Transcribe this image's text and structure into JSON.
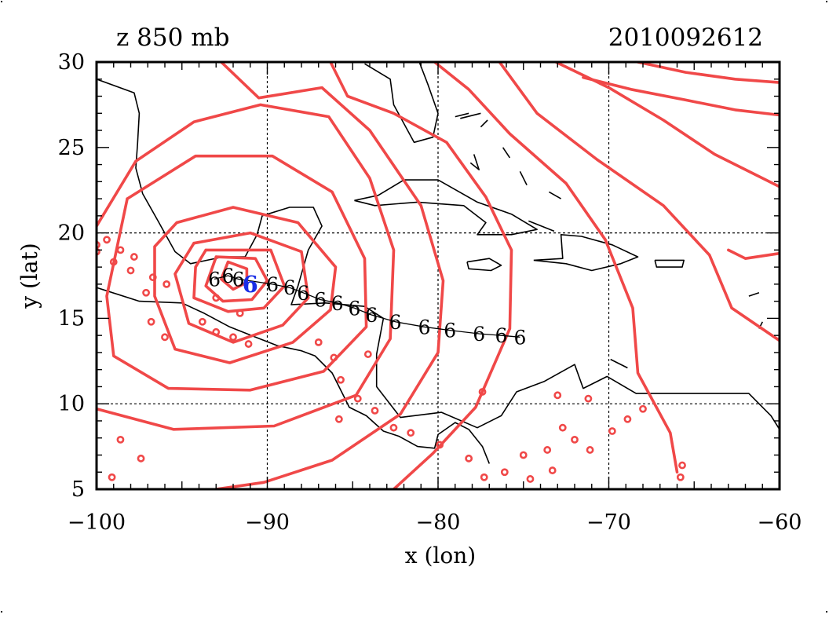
{
  "header": {
    "field_label": "z 850 mb",
    "timestamp": "2010092612"
  },
  "axes": {
    "xlabel": "x (lon)",
    "ylabel": "y (lat)",
    "xlim": [
      -100,
      -60
    ],
    "ylim": [
      5,
      30
    ],
    "xticks": [
      -100,
      -90,
      -80,
      -70,
      -60
    ],
    "yticks": [
      5,
      10,
      15,
      20,
      25,
      30
    ],
    "xtick_labels": [
      "−100",
      "−90",
      "−80",
      "−70",
      "−60"
    ],
    "ytick_labels": [
      "5",
      "10",
      "15",
      "20",
      "25",
      "30"
    ],
    "grid_lon": [
      -90,
      -80,
      -70
    ],
    "grid_lat": [
      10,
      20
    ]
  },
  "colors": {
    "contour": "#f04848",
    "coast": "#000000",
    "track": "#000000",
    "current_position": "#1a2ee6"
  },
  "track": {
    "marker_glyph": "6",
    "points": [
      {
        "lon": -93.1,
        "lat": 17.3
      },
      {
        "lon": -92.3,
        "lat": 17.5
      },
      {
        "lon": -91.7,
        "lat": 17.3
      },
      {
        "lon": -89.7,
        "lat": 17.0
      },
      {
        "lon": -88.7,
        "lat": 16.8
      },
      {
        "lon": -87.9,
        "lat": 16.5
      },
      {
        "lon": -86.9,
        "lat": 16.1
      },
      {
        "lon": -85.9,
        "lat": 15.9
      },
      {
        "lon": -84.9,
        "lat": 15.6
      },
      {
        "lon": -83.9,
        "lat": 15.2
      },
      {
        "lon": -82.5,
        "lat": 14.8
      },
      {
        "lon": -80.8,
        "lat": 14.5
      },
      {
        "lon": -79.3,
        "lat": 14.3
      },
      {
        "lon": -77.6,
        "lat": 14.1
      },
      {
        "lon": -76.3,
        "lat": 14.0
      },
      {
        "lon": -75.2,
        "lat": 13.9
      }
    ],
    "current": {
      "lon": -91.0,
      "lat": 17.0
    }
  },
  "contours": [
    [
      [
        -92.3,
        18.3
      ],
      [
        -91.2,
        17.9
      ],
      [
        -91.2,
        17.1
      ],
      [
        -92.0,
        16.7
      ],
      [
        -92.7,
        17.3
      ],
      [
        -92.3,
        18.3
      ]
    ],
    [
      [
        -93.0,
        18.6
      ],
      [
        -90.7,
        18.5
      ],
      [
        -90.0,
        17.2
      ],
      [
        -90.9,
        16.1
      ],
      [
        -92.6,
        16.0
      ],
      [
        -93.6,
        16.9
      ],
      [
        -93.0,
        18.6
      ]
    ],
    [
      [
        -93.6,
        19.0
      ],
      [
        -89.8,
        19.0
      ],
      [
        -89.0,
        16.9
      ],
      [
        -90.2,
        15.6
      ],
      [
        -92.3,
        15.4
      ],
      [
        -94.3,
        16.2
      ],
      [
        -94.2,
        18.0
      ],
      [
        -93.6,
        19.0
      ]
    ],
    [
      [
        -94.3,
        19.4
      ],
      [
        -91.0,
        20.0
      ],
      [
        -88.0,
        18.9
      ],
      [
        -87.6,
        16.2
      ],
      [
        -89.1,
        14.6
      ],
      [
        -92.0,
        13.6
      ],
      [
        -94.6,
        14.7
      ],
      [
        -95.4,
        17.6
      ],
      [
        -94.3,
        19.4
      ]
    ],
    [
      [
        -95.3,
        20.6
      ],
      [
        -92.0,
        21.5
      ],
      [
        -88.2,
        20.6
      ],
      [
        -86.0,
        18.0
      ],
      [
        -86.3,
        15.5
      ],
      [
        -88.5,
        13.6
      ],
      [
        -92.2,
        12.4
      ],
      [
        -95.4,
        13.2
      ],
      [
        -96.6,
        16.3
      ],
      [
        -96.6,
        19.2
      ],
      [
        -95.3,
        20.6
      ]
    ],
    [
      [
        -98.2,
        22.0
      ],
      [
        -94.2,
        24.5
      ],
      [
        -89.7,
        24.5
      ],
      [
        -86.2,
        22.4
      ],
      [
        -84.3,
        18.5
      ],
      [
        -84.2,
        14.5
      ],
      [
        -86.7,
        11.9
      ],
      [
        -91.0,
        10.8
      ],
      [
        -95.8,
        10.9
      ],
      [
        -99.0,
        12.8
      ],
      [
        -99.4,
        16.3
      ],
      [
        -98.2,
        22.0
      ]
    ],
    [
      [
        -100.0,
        20.4
      ],
      [
        -97.7,
        24.2
      ],
      [
        -94.3,
        26.5
      ],
      [
        -90.4,
        27.5
      ],
      [
        -86.4,
        26.8
      ],
      [
        -84.0,
        23.2
      ],
      [
        -82.6,
        19.0
      ],
      [
        -82.8,
        13.8
      ],
      [
        -84.8,
        10.5
      ],
      [
        -89.6,
        8.7
      ],
      [
        -95.5,
        8.5
      ],
      [
        -100.0,
        9.7
      ]
    ],
    [
      [
        -92.7,
        30.0
      ],
      [
        -90.5,
        27.9
      ],
      [
        -86.8,
        28.5
      ],
      [
        -84.0,
        26.0
      ],
      [
        -81.0,
        21.6
      ],
      [
        -79.7,
        17.2
      ],
      [
        -80.0,
        13.0
      ],
      [
        -82.2,
        9.4
      ],
      [
        -86.2,
        6.7
      ],
      [
        -90.2,
        5.4
      ],
      [
        -93.0,
        5.0
      ]
    ],
    [
      [
        -86.3,
        30.0
      ],
      [
        -85.3,
        28.0
      ],
      [
        -82.6,
        27.0
      ],
      [
        -79.5,
        25.3
      ],
      [
        -77.2,
        22.1
      ],
      [
        -75.7,
        19.0
      ],
      [
        -75.8,
        14.4
      ],
      [
        -77.8,
        9.8
      ],
      [
        -80.3,
        7.1
      ],
      [
        -82.6,
        5.0
      ]
    ],
    [
      [
        -80.2,
        30.0
      ],
      [
        -78.2,
        28.4
      ],
      [
        -75.8,
        25.8
      ],
      [
        -72.5,
        22.9
      ],
      [
        -70.2,
        19.6
      ],
      [
        -68.6,
        15.6
      ],
      [
        -68.3,
        11.8
      ],
      [
        -66.4,
        8.3
      ],
      [
        -66.0,
        6.0
      ]
    ],
    [
      [
        -76.4,
        30.0
      ],
      [
        -74.2,
        27.0
      ],
      [
        -70.7,
        24.3
      ],
      [
        -66.8,
        21.6
      ],
      [
        -64.1,
        18.7
      ],
      [
        -62.8,
        15.6
      ],
      [
        -60.0,
        13.7
      ]
    ],
    [
      [
        -73.1,
        30.0
      ],
      [
        -70.0,
        28.5
      ],
      [
        -66.8,
        26.6
      ],
      [
        -63.8,
        24.6
      ],
      [
        -60.0,
        22.7
      ]
    ],
    [
      [
        -68.3,
        30.0
      ],
      [
        -65.5,
        29.4
      ],
      [
        -62.6,
        29.0
      ],
      [
        -60.0,
        28.8
      ]
    ],
    [
      [
        -71.5,
        29.1
      ],
      [
        -68.7,
        28.4
      ],
      [
        -65.6,
        27.8
      ],
      [
        -62.6,
        27.2
      ],
      [
        -60.0,
        26.9
      ]
    ],
    [
      [
        -60.0,
        18.8
      ],
      [
        -62.0,
        18.5
      ],
      [
        -63.0,
        19.0
      ]
    ]
  ],
  "coastlines": [
    [
      [
        -100.0,
        29.0
      ],
      [
        -97.8,
        28.2
      ],
      [
        -97.5,
        27.0
      ],
      [
        -97.6,
        25.2
      ],
      [
        -97.7,
        23.8
      ],
      [
        -97.3,
        22.3
      ],
      [
        -96.4,
        20.7
      ],
      [
        -95.4,
        18.9
      ],
      [
        -94.5,
        18.2
      ],
      [
        -92.6,
        18.6
      ],
      [
        -91.3,
        18.6
      ],
      [
        -90.6,
        19.9
      ],
      [
        -90.3,
        21.0
      ],
      [
        -88.7,
        21.5
      ],
      [
        -87.3,
        21.5
      ],
      [
        -86.8,
        20.4
      ],
      [
        -87.6,
        19.0
      ],
      [
        -88.2,
        16.9
      ],
      [
        -88.6,
        15.8
      ],
      [
        -86.6,
        15.9
      ],
      [
        -84.3,
        15.7
      ],
      [
        -83.2,
        15.0
      ],
      [
        -83.6,
        12.9
      ],
      [
        -83.6,
        11.0
      ],
      [
        -82.2,
        9.2
      ],
      [
        -79.8,
        9.5
      ],
      [
        -77.7,
        8.6
      ],
      [
        -76.3,
        9.3
      ],
      [
        -75.4,
        10.7
      ],
      [
        -73.8,
        11.3
      ],
      [
        -72.0,
        12.3
      ],
      [
        -71.5,
        10.9
      ],
      [
        -70.1,
        11.6
      ],
      [
        -68.4,
        10.6
      ],
      [
        -66.0,
        10.6
      ],
      [
        -63.0,
        10.6
      ],
      [
        -61.8,
        10.6
      ],
      [
        -60.5,
        9.3
      ],
      [
        -60.0,
        8.5
      ]
    ],
    [
      [
        -100.0,
        16.8
      ],
      [
        -97.5,
        16.0
      ],
      [
        -95.0,
        15.9
      ],
      [
        -93.7,
        15.3
      ],
      [
        -92.2,
        14.5
      ],
      [
        -90.7,
        13.9
      ],
      [
        -89.4,
        13.4
      ],
      [
        -88.0,
        13.1
      ],
      [
        -87.2,
        12.8
      ],
      [
        -86.2,
        11.8
      ],
      [
        -85.6,
        10.6
      ],
      [
        -85.2,
        9.8
      ],
      [
        -84.2,
        9.3
      ],
      [
        -83.2,
        8.4
      ],
      [
        -82.3,
        8.1
      ],
      [
        -81.2,
        7.5
      ],
      [
        -80.2,
        7.4
      ],
      [
        -80.0,
        8.2
      ],
      [
        -79.0,
        8.9
      ],
      [
        -78.2,
        8.5
      ],
      [
        -77.4,
        7.5
      ],
      [
        -77.0,
        6.5
      ]
    ],
    [
      [
        -84.3,
        29.9
      ],
      [
        -82.8,
        29.0
      ],
      [
        -82.6,
        27.5
      ],
      [
        -81.4,
        25.3
      ],
      [
        -80.3,
        25.6
      ],
      [
        -80.0,
        27.0
      ],
      [
        -80.6,
        28.7
      ],
      [
        -81.1,
        30.0
      ]
    ],
    [
      [
        -84.9,
        21.9
      ],
      [
        -83.5,
        22.2
      ],
      [
        -82.0,
        23.1
      ],
      [
        -80.0,
        23.1
      ],
      [
        -77.7,
        21.8
      ],
      [
        -75.7,
        21.1
      ],
      [
        -74.2,
        20.2
      ],
      [
        -75.7,
        19.9
      ],
      [
        -77.7,
        19.9
      ],
      [
        -77.2,
        20.6
      ],
      [
        -78.5,
        21.6
      ],
      [
        -81.2,
        21.8
      ],
      [
        -83.7,
        21.6
      ],
      [
        -84.9,
        21.9
      ]
    ],
    [
      [
        -78.3,
        18.3
      ],
      [
        -77.0,
        18.5
      ],
      [
        -76.3,
        18.1
      ],
      [
        -76.9,
        17.8
      ],
      [
        -78.2,
        17.9
      ],
      [
        -78.3,
        18.3
      ]
    ],
    [
      [
        -74.4,
        18.4
      ],
      [
        -72.7,
        18.5
      ],
      [
        -72.8,
        19.9
      ],
      [
        -71.6,
        19.8
      ],
      [
        -69.8,
        19.3
      ],
      [
        -68.3,
        18.6
      ],
      [
        -69.3,
        18.2
      ],
      [
        -71.0,
        17.8
      ],
      [
        -72.5,
        18.2
      ],
      [
        -74.4,
        18.4
      ]
    ],
    [
      [
        -67.3,
        18.4
      ],
      [
        -65.6,
        18.4
      ],
      [
        -65.7,
        18.0
      ],
      [
        -67.2,
        18.0
      ],
      [
        -67.3,
        18.4
      ]
    ],
    [
      [
        -73.2,
        20.1
      ],
      [
        -74.7,
        20.7
      ]
    ],
    [
      [
        -77.1,
        26.6
      ],
      [
        -77.5,
        26.2
      ]
    ],
    [
      [
        -77.9,
        24.6
      ],
      [
        -77.6,
        23.7
      ],
      [
        -78.1,
        24.1
      ]
    ],
    [
      [
        -76.2,
        25.0
      ],
      [
        -75.8,
        24.4
      ]
    ],
    [
      [
        -77.5,
        27.0
      ],
      [
        -78.7,
        26.7
      ]
    ],
    [
      [
        -79.0,
        26.8
      ],
      [
        -78.2,
        27.0
      ]
    ],
    [
      [
        -75.2,
        23.6
      ],
      [
        -74.8,
        22.8
      ]
    ],
    [
      [
        -73.5,
        22.4
      ],
      [
        -72.8,
        22.0
      ]
    ],
    [
      [
        -61.8,
        16.3
      ],
      [
        -61.2,
        16.5
      ]
    ],
    [
      [
        -61.0,
        14.8
      ],
      [
        -61.2,
        14.4
      ]
    ],
    [
      [
        -69.9,
        12.6
      ],
      [
        -68.9,
        12.1
      ]
    ]
  ],
  "speckles": [
    [
      -100.0,
      19.3
    ],
    [
      -99.4,
      19.6
    ],
    [
      -98.6,
      19.0
    ],
    [
      -97.8,
      18.6
    ],
    [
      -99.0,
      18.3
    ],
    [
      -96.7,
      17.4
    ],
    [
      -95.9,
      17.0
    ],
    [
      -97.1,
      16.5
    ],
    [
      -98.0,
      17.8
    ],
    [
      -100.0,
      18.9
    ],
    [
      -93.8,
      14.8
    ],
    [
      -93.0,
      14.2
    ],
    [
      -92.0,
      13.9
    ],
    [
      -91.1,
      13.5
    ],
    [
      -87.0,
      13.6
    ],
    [
      -86.1,
      12.7
    ],
    [
      -85.7,
      11.4
    ],
    [
      -84.7,
      10.3
    ],
    [
      -83.7,
      9.6
    ],
    [
      -82.6,
      8.6
    ],
    [
      -81.6,
      8.3
    ],
    [
      -79.9,
      7.6
    ],
    [
      -78.2,
      6.8
    ],
    [
      -77.3,
      5.7
    ],
    [
      -76.1,
      6.0
    ],
    [
      -75.0,
      7.0
    ],
    [
      -74.6,
      5.6
    ],
    [
      -73.3,
      6.1
    ],
    [
      -73.6,
      7.3
    ],
    [
      -72.7,
      8.6
    ],
    [
      -72.0,
      7.9
    ],
    [
      -71.1,
      7.3
    ],
    [
      -69.8,
      8.4
    ],
    [
      -68.9,
      9.1
    ],
    [
      -68.0,
      9.7
    ],
    [
      -71.2,
      10.3
    ],
    [
      -73.0,
      10.5
    ],
    [
      -77.4,
      10.7
    ],
    [
      -85.8,
      9.1
    ],
    [
      -84.1,
      12.9
    ],
    [
      -65.7,
      6.4
    ],
    [
      -65.8,
      5.7
    ],
    [
      -96.8,
      14.8
    ],
    [
      -96.0,
      13.9
    ],
    [
      -98.6,
      7.9
    ],
    [
      -97.4,
      6.8
    ],
    [
      -99.1,
      5.7
    ],
    [
      -93.0,
      16.2
    ],
    [
      -91.6,
      15.3
    ]
  ]
}
